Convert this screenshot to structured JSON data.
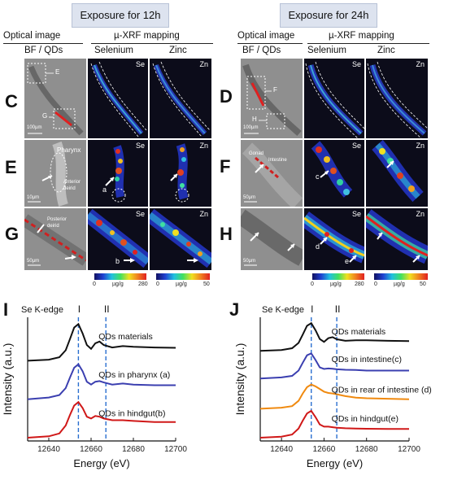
{
  "headers": {
    "left": "Exposure for 12h",
    "right": "Exposure for 24h"
  },
  "subheaders": {
    "left": {
      "optical": "Optical image",
      "xrf": "µ-XRF mapping",
      "bf": "BF / QDs",
      "se": "Selenium",
      "zn": "Zinc"
    },
    "right": {
      "optical": "Optical  image",
      "xrf": "µ-XRF mapping",
      "bf": "BF / QDs",
      "se": "Selenium",
      "zn": "Zinc"
    }
  },
  "panel_labels": [
    "C",
    "D",
    "E",
    "F",
    "G",
    "H",
    "I",
    "J"
  ],
  "tiles": {
    "se": "Se",
    "zn": "Zn",
    "c_box_e": "E",
    "c_box_g": "G",
    "c_scale": "100µm",
    "d_box_f": "F",
    "d_box_h": "H",
    "d_scale": "100µm",
    "e_pharynx": "Pharynx",
    "e_anterior": "Anterior deirid",
    "e_scale": "10µm",
    "e_arrow_a": "a",
    "f_gonad": "Gonad",
    "f_intestine": "Intestine",
    "f_scale": "50µm",
    "f_arrow_c": "c",
    "g_posterior": "Posterior deirid",
    "g_scale": "50µm",
    "g_arrow_b": "b",
    "h_scale": "50µm",
    "h_arrow_d": "d",
    "h_arrow_e": "e"
  },
  "colorbars": {
    "left_se": {
      "min": "0",
      "unit": "µg/g",
      "max": "280"
    },
    "left_zn": {
      "min": "0",
      "unit": "µg/g",
      "max": "50"
    },
    "right_se": {
      "min": "0",
      "unit": "µg/g",
      "max": "280"
    },
    "right_zn": {
      "min": "0",
      "unit": "µg/g",
      "max": "50"
    }
  },
  "chart_data": [
    {
      "type": "line",
      "panel": "I",
      "title": "Se K-edge",
      "xlabel": "Energy (eV)",
      "ylabel": "Intensity (a.u.)",
      "xlim": [
        12630,
        12700
      ],
      "xticks": [
        12640,
        12660,
        12680,
        12700
      ],
      "vlines": [
        {
          "x": 12654,
          "label": "I"
        },
        {
          "x": 12667,
          "label": "II"
        }
      ],
      "series": [
        {
          "name": "QDs materials",
          "color": "#111111",
          "offset": 2.2,
          "x": [
            12630,
            12640,
            12645,
            12648,
            12650,
            12652,
            12654,
            12656,
            12658,
            12660,
            12662,
            12664,
            12666,
            12670,
            12675,
            12680,
            12690,
            12700
          ],
          "y": [
            0,
            0.03,
            0.1,
            0.3,
            0.62,
            0.95,
            1.05,
            0.78,
            0.45,
            0.34,
            0.5,
            0.55,
            0.45,
            0.38,
            0.42,
            0.4,
            0.38,
            0.37
          ]
        },
        {
          "name": "QDs in pharynx (a)",
          "color": "#3b3fb0",
          "offset": 1.1,
          "x": [
            12630,
            12640,
            12645,
            12648,
            12650,
            12652,
            12654,
            12656,
            12658,
            12660,
            12662,
            12664,
            12666,
            12670,
            12675,
            12680,
            12690,
            12700
          ],
          "y": [
            0,
            0.05,
            0.12,
            0.32,
            0.62,
            0.9,
            1.0,
            0.8,
            0.5,
            0.42,
            0.5,
            0.52,
            0.48,
            0.42,
            0.45,
            0.42,
            0.4,
            0.4
          ]
        },
        {
          "name": "QDs in hindgut(b)",
          "color": "#d01818",
          "offset": 0,
          "x": [
            12630,
            12640,
            12645,
            12648,
            12650,
            12652,
            12654,
            12656,
            12658,
            12660,
            12662,
            12664,
            12666,
            12670,
            12675,
            12680,
            12690,
            12700
          ],
          "y": [
            0,
            0.04,
            0.12,
            0.35,
            0.65,
            0.92,
            1.02,
            0.85,
            0.6,
            0.55,
            0.62,
            0.6,
            0.55,
            0.5,
            0.5,
            0.48,
            0.45,
            0.45
          ]
        }
      ]
    },
    {
      "type": "line",
      "panel": "J",
      "title": "Se K-edge",
      "xlabel": "Energy (eV)",
      "ylabel": "Intensity (a.u.)",
      "xlim": [
        12630,
        12700
      ],
      "xticks": [
        12640,
        12660,
        12680,
        12700
      ],
      "vlines": [
        {
          "x": 12654,
          "label": "I"
        },
        {
          "x": 12666,
          "label": "II"
        }
      ],
      "series": [
        {
          "name": "QDs materials",
          "color": "#111111",
          "offset": 3.3,
          "x": [
            12630,
            12640,
            12645,
            12648,
            12650,
            12652,
            12654,
            12656,
            12658,
            12660,
            12662,
            12664,
            12666,
            12670,
            12675,
            12680,
            12690,
            12700
          ],
          "y": [
            0,
            0.03,
            0.1,
            0.3,
            0.62,
            0.95,
            1.05,
            0.78,
            0.45,
            0.34,
            0.48,
            0.52,
            0.44,
            0.38,
            0.4,
            0.4,
            0.38,
            0.37
          ]
        },
        {
          "name": "QDs in intestine(c)",
          "color": "#3b3fb0",
          "offset": 2.25,
          "x": [
            12630,
            12640,
            12645,
            12648,
            12650,
            12652,
            12654,
            12656,
            12658,
            12660,
            12662,
            12664,
            12666,
            12670,
            12675,
            12680,
            12690,
            12700
          ],
          "y": [
            0,
            0.04,
            0.1,
            0.3,
            0.6,
            0.88,
            0.95,
            0.7,
            0.42,
            0.36,
            0.38,
            0.37,
            0.35,
            0.33,
            0.32,
            0.3,
            0.3,
            0.3
          ]
        },
        {
          "name": "QDs in rear of intestine (d)",
          "color": "#f08a10",
          "offset": 1.1,
          "x": [
            12630,
            12640,
            12645,
            12648,
            12650,
            12652,
            12654,
            12656,
            12658,
            12660,
            12662,
            12664,
            12666,
            12670,
            12675,
            12680,
            12690,
            12700
          ],
          "y": [
            0,
            0.04,
            0.1,
            0.3,
            0.58,
            0.82,
            0.92,
            0.85,
            0.75,
            0.65,
            0.6,
            0.58,
            0.55,
            0.48,
            0.42,
            0.4,
            0.38,
            0.36
          ]
        },
        {
          "name": "QDs in hindgut(e)",
          "color": "#d01818",
          "offset": 0,
          "x": [
            12630,
            12640,
            12645,
            12648,
            12650,
            12652,
            12654,
            12656,
            12658,
            12660,
            12662,
            12664,
            12666,
            12670,
            12675,
            12680,
            12690,
            12700
          ],
          "y": [
            0,
            0.04,
            0.12,
            0.35,
            0.65,
            0.92,
            1.02,
            0.78,
            0.5,
            0.42,
            0.42,
            0.4,
            0.38,
            0.36,
            0.35,
            0.34,
            0.33,
            0.33
          ]
        }
      ]
    }
  ]
}
